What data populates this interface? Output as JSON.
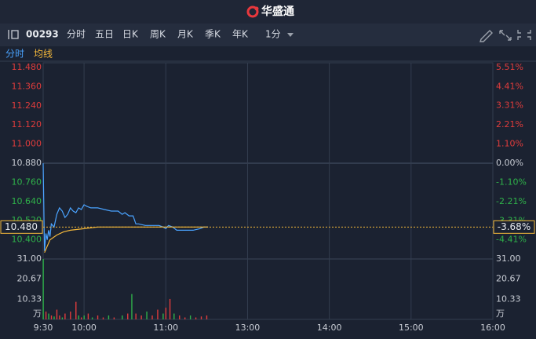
{
  "header": {
    "logo": "华盛通"
  },
  "toolbar": {
    "code": "00293",
    "tabs": [
      "分时",
      "五日",
      "日K",
      "周K",
      "月K",
      "季K",
      "年K"
    ],
    "interval": "1分"
  },
  "legend": [
    "分时",
    "均线"
  ],
  "chart_data": {
    "type": "line",
    "xlim": [
      0,
      330
    ],
    "xticks": [
      {
        "value": 0,
        "label": "9:30"
      },
      {
        "value": 30,
        "label": "10:00"
      },
      {
        "value": 90,
        "label": "11:00"
      },
      {
        "value": 150,
        "label": "13:00"
      },
      {
        "value": 210,
        "label": "14:00"
      },
      {
        "value": 270,
        "label": "15:00"
      },
      {
        "value": 330,
        "label": "16:00"
      }
    ],
    "ylim": [
      10.28,
      11.48
    ],
    "yticks": [
      {
        "value": 11.48,
        "label": "11.480"
      },
      {
        "value": 11.36,
        "label": "11.360"
      },
      {
        "value": 11.24,
        "label": "11.240"
      },
      {
        "value": 11.12,
        "label": "11.120"
      },
      {
        "value": 11.0,
        "label": "11.000"
      },
      {
        "value": 10.88,
        "label": "10.880"
      },
      {
        "value": 10.76,
        "label": "10.760"
      },
      {
        "value": 10.64,
        "label": "10.640"
      },
      {
        "value": 10.52,
        "label": "10.520"
      },
      {
        "value": 10.4,
        "label": "10.400"
      }
    ],
    "y2lim": [
      -5.51,
      5.51
    ],
    "y2ticks": [
      {
        "value": 5.51,
        "label": "5.51%"
      },
      {
        "value": 4.41,
        "label": "4.41%"
      },
      {
        "value": 3.31,
        "label": "3.31%"
      },
      {
        "value": 2.21,
        "label": "2.21%"
      },
      {
        "value": 1.1,
        "label": "1.10%"
      },
      {
        "value": 0,
        "label": "0.00%"
      },
      {
        "value": -1.1,
        "label": "-1.10%"
      },
      {
        "value": -2.21,
        "label": "-2.21%"
      },
      {
        "value": -3.31,
        "label": "-3.31%"
      },
      {
        "value": -4.41,
        "label": "-4.41%"
      }
    ],
    "prev_close": 10.88,
    "last_price": {
      "value": 10.48,
      "label": "10.480"
    },
    "last_change": {
      "value": -3.68,
      "label": "-3.68%"
    },
    "series": [
      {
        "name": "分时",
        "color": "#4aa3ff",
        "x": [
          0,
          1,
          2,
          3,
          4,
          5,
          6,
          8,
          10,
          12,
          14,
          16,
          18,
          20,
          22,
          24,
          26,
          28,
          30,
          32,
          35,
          40,
          45,
          50,
          55,
          58,
          60,
          63,
          66,
          68,
          70,
          75,
          80,
          85,
          88,
          90,
          92,
          95,
          98,
          100,
          105,
          110,
          115,
          118,
          121
        ],
        "values": [
          10.88,
          10.33,
          10.44,
          10.4,
          10.46,
          10.42,
          10.5,
          10.48,
          10.56,
          10.6,
          10.58,
          10.54,
          10.56,
          10.6,
          10.58,
          10.57,
          10.6,
          10.59,
          10.62,
          10.61,
          10.6,
          10.6,
          10.59,
          10.58,
          10.58,
          10.56,
          10.57,
          10.55,
          10.55,
          10.5,
          10.5,
          10.49,
          10.49,
          10.49,
          10.48,
          10.47,
          10.49,
          10.48,
          10.46,
          10.46,
          10.46,
          10.46,
          10.47,
          10.48,
          10.48
        ]
      },
      {
        "name": "均线",
        "color": "#f5b93a",
        "x": [
          1,
          3,
          5,
          10,
          15,
          20,
          30,
          40,
          60,
          90,
          121
        ],
        "values": [
          10.32,
          10.36,
          10.4,
          10.43,
          10.45,
          10.46,
          10.47,
          10.48,
          10.48,
          10.48,
          10.48
        ]
      }
    ],
    "volume": {
      "unit": "万",
      "ylim": [
        0,
        31
      ],
      "yticks": [
        {
          "value": 31,
          "label": "31.00"
        },
        {
          "value": 20.67,
          "label": "20.67"
        },
        {
          "value": 10.33,
          "label": "10.33"
        }
      ],
      "up_color": "#e03c3c",
      "down_color": "#2fb24a",
      "x": [
        0,
        2,
        4,
        6,
        8,
        10,
        12,
        14,
        16,
        20,
        24,
        26,
        28,
        30,
        33,
        36,
        40,
        44,
        48,
        52,
        58,
        62,
        65,
        68,
        72,
        76,
        80,
        84,
        88,
        90,
        93,
        96,
        100,
        104,
        108,
        112,
        116,
        120
      ],
      "values": [
        31,
        4,
        3,
        2,
        1.5,
        5,
        2,
        1,
        3,
        4,
        9,
        2,
        1,
        2,
        3,
        1,
        2,
        1,
        2,
        1,
        2,
        3,
        13,
        3,
        2,
        4,
        2,
        5,
        3,
        6,
        10.5,
        3,
        2,
        1,
        2,
        1,
        1.5,
        2
      ],
      "up": [
        false,
        true,
        false,
        true,
        false,
        true,
        true,
        false,
        true,
        true,
        true,
        false,
        true,
        false,
        true,
        false,
        true,
        true,
        false,
        true,
        false,
        true,
        false,
        true,
        true,
        false,
        true,
        true,
        false,
        true,
        true,
        false,
        true,
        true,
        false,
        true,
        true,
        true
      ]
    }
  }
}
